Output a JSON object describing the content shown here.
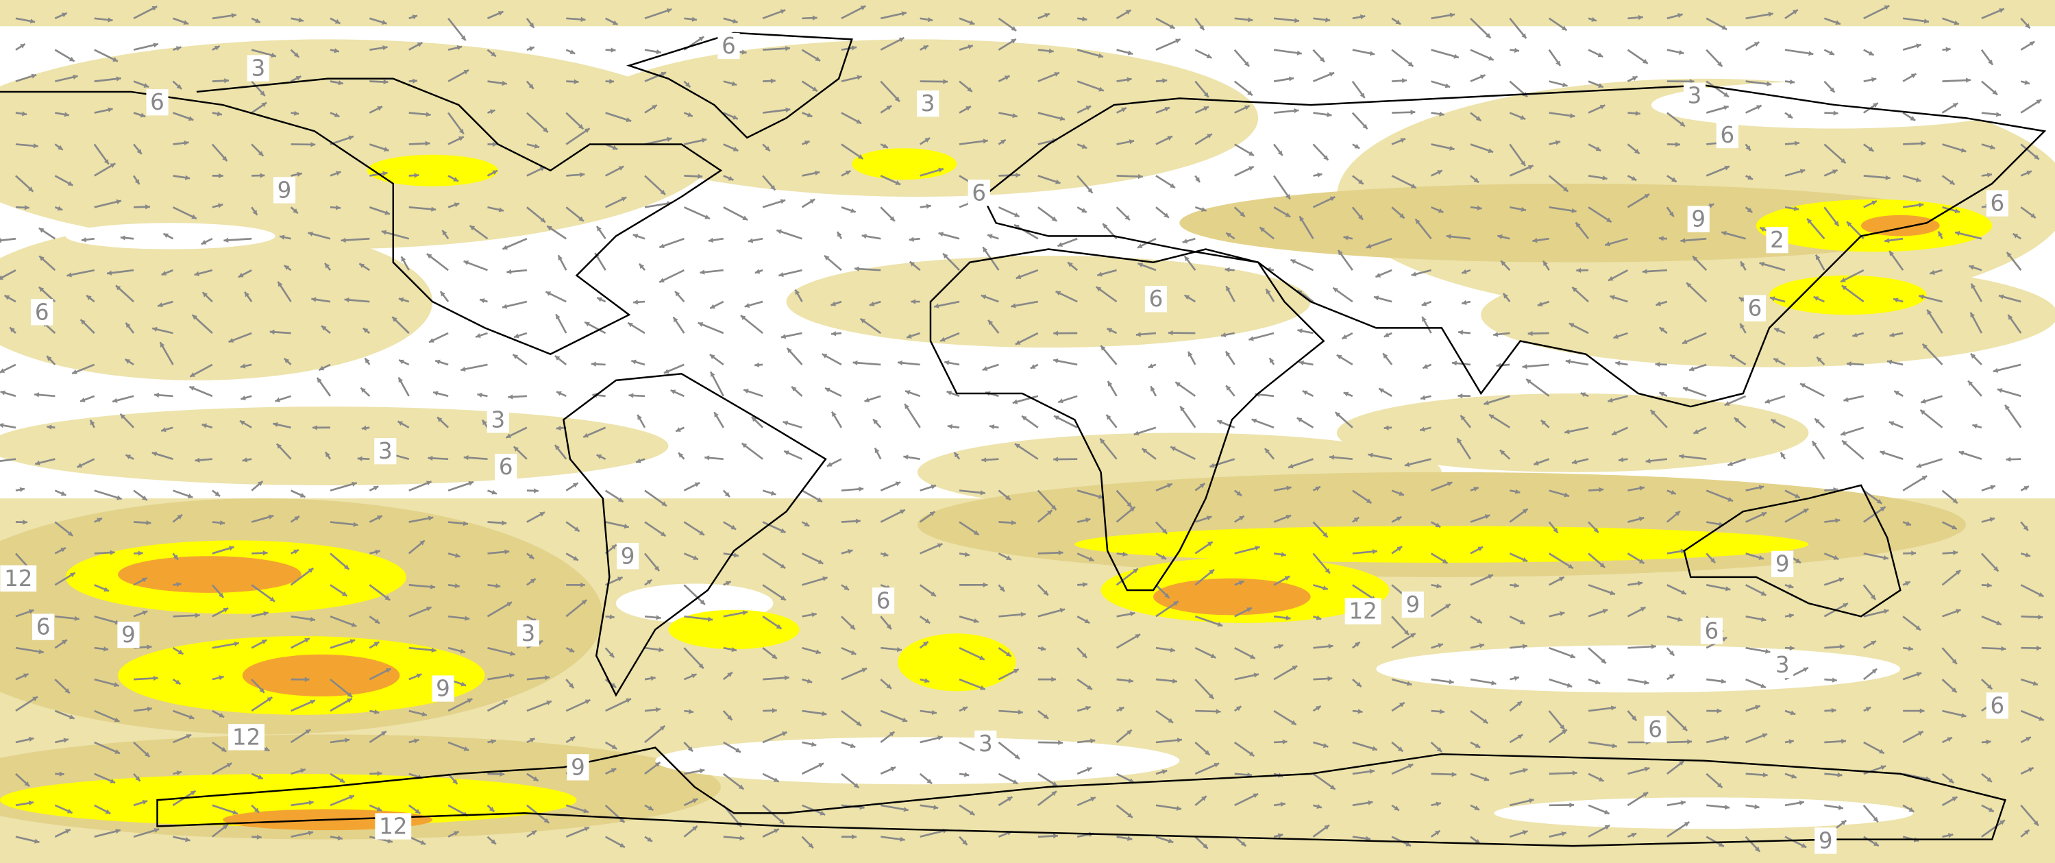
{
  "contour_labels": [
    "3",
    "6",
    "6",
    "3",
    "3",
    "6",
    "9",
    "6",
    "9",
    "2",
    "6",
    "6",
    "6",
    "6",
    "3",
    "3",
    "6",
    "12",
    "9",
    "9",
    "6",
    "12",
    "9",
    "6",
    "9",
    "3",
    "6",
    "9",
    "3",
    "6",
    "12",
    "3",
    "6",
    "9",
    "12",
    "9"
  ]
}
